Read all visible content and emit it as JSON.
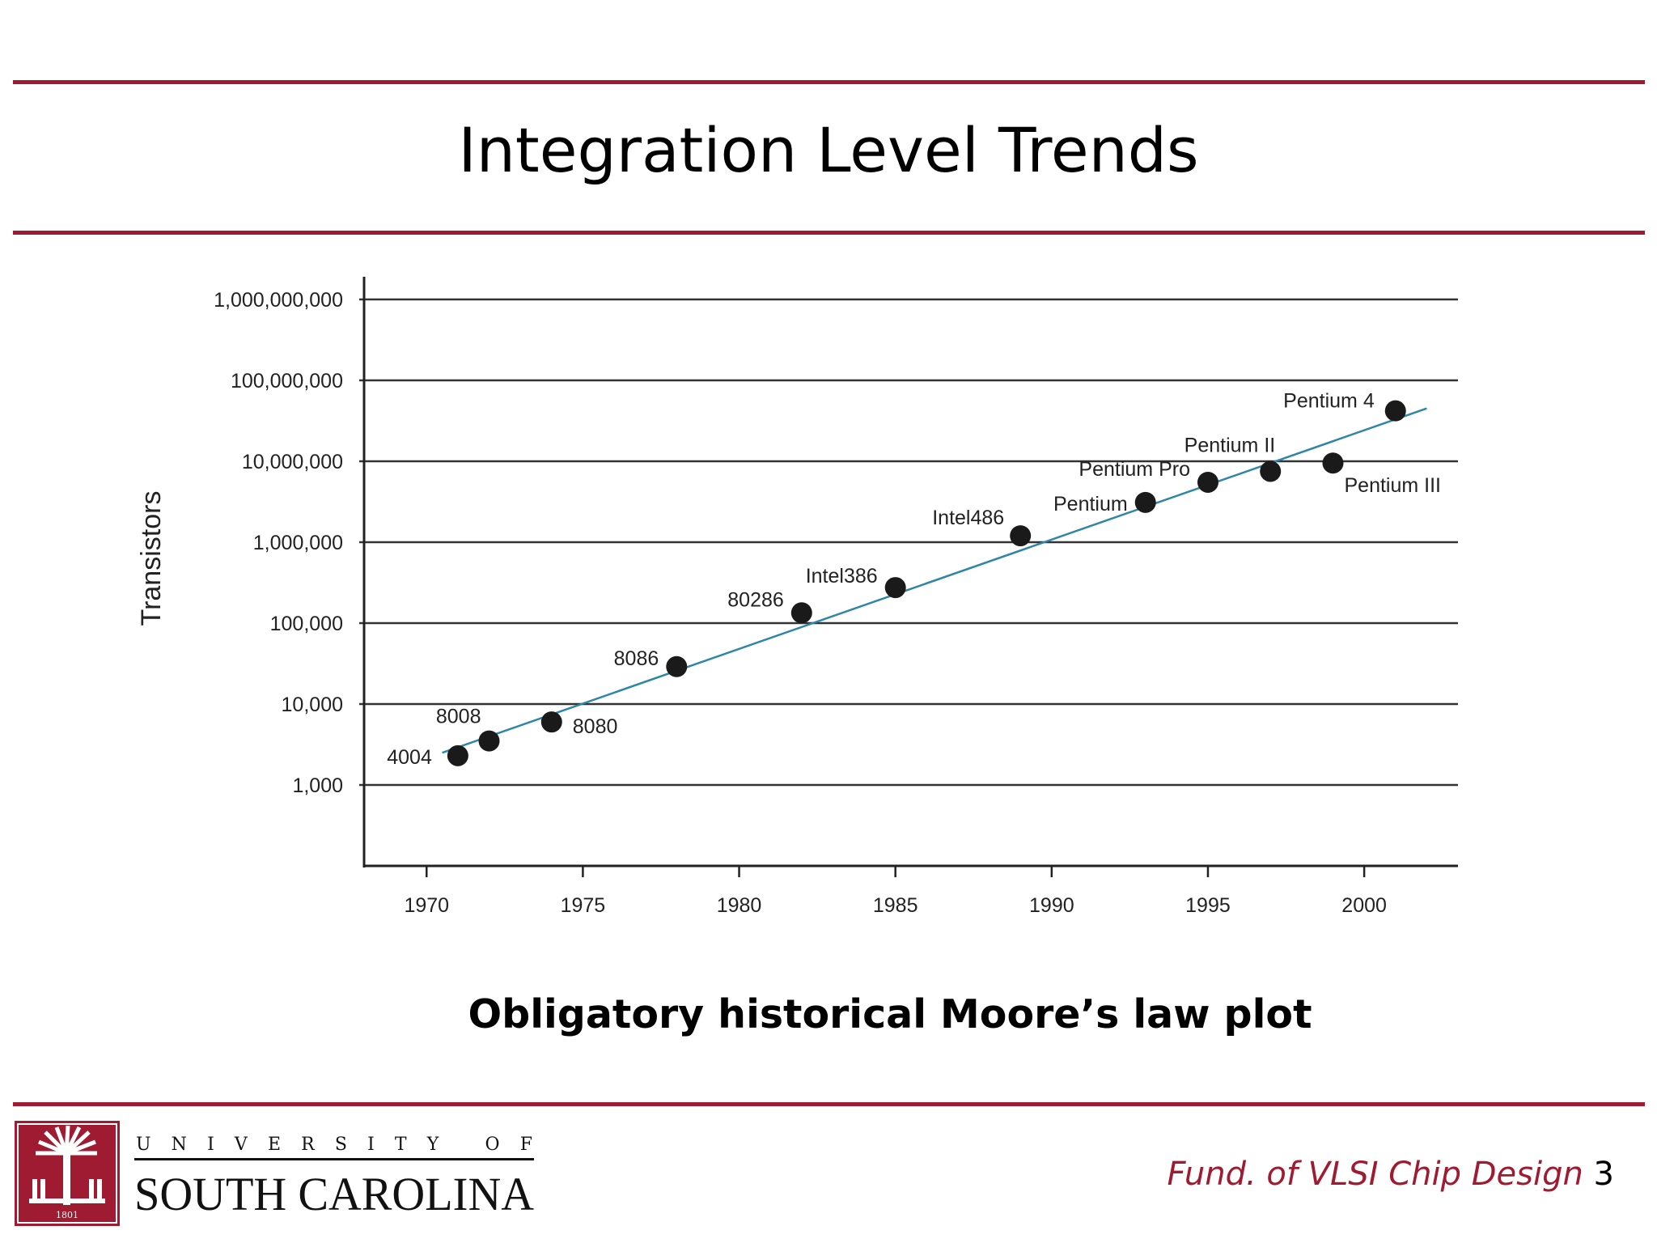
{
  "slide": {
    "title": "Integration Level Trends",
    "caption": "Obligatory historical Moore’s law plot",
    "footer_course": "Fund. of VLSI Chip Design",
    "page_number": "3",
    "logo_line1": "UNIVERSITY OF",
    "logo_line2": "SOUTH CAROLINA",
    "logo_seal_text": "1801",
    "accent_color": "#9e1b32"
  },
  "chart_data": {
    "type": "scatter",
    "title": "",
    "xlabel": "",
    "ylabel": "Transistors",
    "y_scale": "log",
    "xlim": [
      1968,
      2003
    ],
    "ylim": [
      100,
      1000000000
    ],
    "x_ticks": [
      1970,
      1975,
      1980,
      1985,
      1990,
      1995,
      2000
    ],
    "x_tick_labels": [
      "1970",
      "1975",
      "1980",
      "1985",
      "1990",
      "1995",
      "2000"
    ],
    "y_ticks": [
      1000,
      10000,
      100000,
      1000000,
      10000000,
      100000000,
      1000000000
    ],
    "y_tick_labels": [
      "1,000",
      "10,000",
      "100,000",
      "1,000,000",
      "10,000,000",
      "100,000,000",
      "1,000,000,000"
    ],
    "grid": "horizontal",
    "points": [
      {
        "label": "4004",
        "x": 1971,
        "y": 2300
      },
      {
        "label": "8008",
        "x": 1972,
        "y": 3500
      },
      {
        "label": "8080",
        "x": 1974,
        "y": 6000
      },
      {
        "label": "8086",
        "x": 1978,
        "y": 29000
      },
      {
        "label": "80286",
        "x": 1982,
        "y": 134000
      },
      {
        "label": "Intel386",
        "x": 1985,
        "y": 275000
      },
      {
        "label": "Intel486",
        "x": 1989,
        "y": 1200000
      },
      {
        "label": "Pentium",
        "x": 1993,
        "y": 3100000
      },
      {
        "label": "Pentium Pro",
        "x": 1995,
        "y": 5500000
      },
      {
        "label": "Pentium II",
        "x": 1997,
        "y": 7500000
      },
      {
        "label": "Pentium III",
        "x": 1999,
        "y": 9500000
      },
      {
        "label": "Pentium 4",
        "x": 2001,
        "y": 42000000
      }
    ],
    "trend_line": {
      "x": [
        1970.5,
        2002
      ],
      "y": [
        2500,
        45000000
      ]
    },
    "colors": {
      "points": "#1a1a1a",
      "trend": "#2f86a6",
      "grid": "#333333"
    }
  }
}
